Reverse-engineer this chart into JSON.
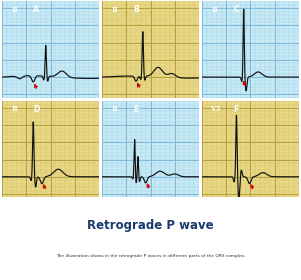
{
  "title": "Retrograde P wave",
  "subtitle": "The illustration shows in the retrograde P waves in different parts of the QRS complex.",
  "title_color": "#1a3a6e",
  "subtitle_color": "#333333",
  "panels": [
    {
      "label": "II",
      "letter": "A",
      "header_bg": "#40b8d8",
      "grid_bg": "#c8eaf5",
      "grid_line": "#a0d0e8",
      "grid_major": "#80b8d8"
    },
    {
      "label": "II",
      "letter": "B",
      "header_bg": "#b8960a",
      "grid_bg": "#e8d888",
      "grid_line": "#d0c060",
      "grid_major": "#b8a040"
    },
    {
      "label": "II",
      "letter": "C",
      "header_bg": "#40b8d8",
      "grid_bg": "#c8eaf5",
      "grid_line": "#a0d0e8",
      "grid_major": "#80b8d8"
    },
    {
      "label": "II",
      "letter": "D",
      "header_bg": "#b8960a",
      "grid_bg": "#e8d888",
      "grid_line": "#d0c060",
      "grid_major": "#b8a040"
    },
    {
      "label": "II",
      "letter": "E",
      "header_bg": "#40b8d8",
      "grid_bg": "#c8eaf5",
      "grid_line": "#a0d0e8",
      "grid_major": "#80b8d8"
    },
    {
      "label": "V3",
      "letter": "F",
      "header_bg": "#b8960a",
      "grid_bg": "#e8d888",
      "grid_line": "#d0c060",
      "grid_major": "#b8a040"
    }
  ],
  "arrow_color": "#cc0000",
  "ecg_color": "#111111"
}
